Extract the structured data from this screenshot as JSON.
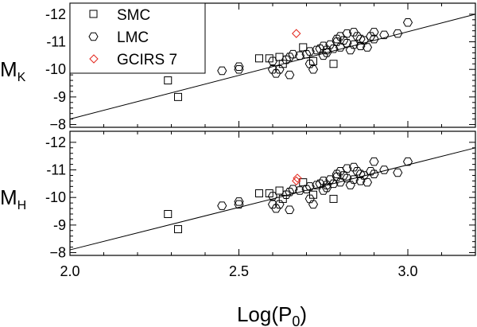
{
  "chart_data": [
    {
      "type": "scatter",
      "panel": "top",
      "ylabel_main": "M",
      "ylabel_sub": "K",
      "xlim": [
        2.0,
        3.2
      ],
      "ylim": [
        -7.9,
        -12.4
      ],
      "yticks": [
        -8,
        -9,
        -10,
        -11,
        -12
      ],
      "ytick_labels": [
        "−8",
        "-9",
        "-10",
        "-11",
        "-12"
      ],
      "fit_line": {
        "x": [
          2.0,
          3.2
        ],
        "y": [
          -8.2,
          -12.0
        ]
      },
      "legend": {
        "position": "top-left",
        "entries": [
          "SMC",
          "LMC",
          "GCIRS 7"
        ]
      },
      "series": [
        {
          "name": "SMC",
          "marker": "square",
          "color": "#000000",
          "points": [
            [
              2.29,
              -9.6
            ],
            [
              2.32,
              -9.0
            ],
            [
              2.56,
              -10.4
            ],
            [
              2.59,
              -10.4
            ],
            [
              2.62,
              -10.45
            ],
            [
              2.63,
              -10.2
            ],
            [
              2.69,
              -10.8
            ],
            [
              2.72,
              -10.3
            ],
            [
              2.78,
              -10.2
            ]
          ]
        },
        {
          "name": "LMC",
          "marker": "hexagon",
          "color": "#000000",
          "points": [
            [
              2.45,
              -9.95
            ],
            [
              2.5,
              -10.0
            ],
            [
              2.5,
              -10.1
            ],
            [
              2.6,
              -10.0
            ],
            [
              2.6,
              -10.3
            ],
            [
              2.61,
              -9.85
            ],
            [
              2.62,
              -10.0
            ],
            [
              2.64,
              -10.35
            ],
            [
              2.65,
              -9.8
            ],
            [
              2.65,
              -10.45
            ],
            [
              2.66,
              -10.55
            ],
            [
              2.68,
              -10.5
            ],
            [
              2.7,
              -10.55
            ],
            [
              2.71,
              -10.2
            ],
            [
              2.71,
              -10.65
            ],
            [
              2.72,
              -10.0
            ],
            [
              2.73,
              -10.7
            ],
            [
              2.74,
              -10.75
            ],
            [
              2.75,
              -10.5
            ],
            [
              2.75,
              -10.85
            ],
            [
              2.76,
              -10.7
            ],
            [
              2.77,
              -10.9
            ],
            [
              2.78,
              -10.75
            ],
            [
              2.79,
              -11.0
            ],
            [
              2.8,
              -10.8
            ],
            [
              2.8,
              -11.2
            ],
            [
              2.81,
              -11.05
            ],
            [
              2.82,
              -10.95
            ],
            [
              2.82,
              -11.3
            ],
            [
              2.83,
              -10.7
            ],
            [
              2.84,
              -10.9
            ],
            [
              2.84,
              -11.35
            ],
            [
              2.85,
              -11.2
            ],
            [
              2.86,
              -10.85
            ],
            [
              2.87,
              -11.05
            ],
            [
              2.88,
              -10.8
            ],
            [
              2.89,
              -11.2
            ],
            [
              2.9,
              -11.35
            ],
            [
              2.9,
              -11.1
            ],
            [
              2.93,
              -11.25
            ],
            [
              2.97,
              -11.3
            ],
            [
              3.0,
              -11.7
            ],
            [
              2.76,
              -10.6
            ],
            [
              2.79,
              -11.1
            ],
            [
              2.86,
              -11.1
            ]
          ]
        },
        {
          "name": "GCIRS 7",
          "marker": "diamond",
          "color": "#e3261c",
          "points": [
            [
              2.67,
              -11.3
            ]
          ]
        }
      ]
    },
    {
      "type": "scatter",
      "panel": "bottom",
      "ylabel_main": "M",
      "ylabel_sub": "H",
      "xlabel_main": "Log(P",
      "xlabel_sub": "0",
      "xlabel_end": ")",
      "xlim": [
        2.0,
        3.2
      ],
      "xticks": [
        2.0,
        2.5,
        3.0
      ],
      "xtick_labels": [
        "2.0",
        "2.5",
        "3.0"
      ],
      "ylim": [
        -7.9,
        -12.4
      ],
      "yticks": [
        -8,
        -9,
        -10,
        -11,
        -12
      ],
      "ytick_labels": [
        "−8",
        "-9",
        "-10",
        "-11",
        "-12"
      ],
      "fit_line": {
        "x": [
          2.0,
          3.2
        ],
        "y": [
          -8.1,
          -11.8
        ]
      },
      "series": [
        {
          "name": "SMC",
          "marker": "square",
          "color": "#000000",
          "points": [
            [
              2.29,
              -9.4
            ],
            [
              2.32,
              -8.85
            ],
            [
              2.56,
              -10.15
            ],
            [
              2.59,
              -10.15
            ],
            [
              2.62,
              -10.25
            ],
            [
              2.63,
              -9.95
            ],
            [
              2.69,
              -10.55
            ],
            [
              2.72,
              -10.1
            ],
            [
              2.78,
              -9.95
            ]
          ]
        },
        {
          "name": "LMC",
          "marker": "hexagon",
          "color": "#000000",
          "points": [
            [
              2.45,
              -9.7
            ],
            [
              2.5,
              -9.75
            ],
            [
              2.5,
              -9.85
            ],
            [
              2.6,
              -9.75
            ],
            [
              2.6,
              -10.05
            ],
            [
              2.61,
              -9.6
            ],
            [
              2.62,
              -9.75
            ],
            [
              2.64,
              -10.1
            ],
            [
              2.65,
              -9.55
            ],
            [
              2.65,
              -10.2
            ],
            [
              2.66,
              -10.3
            ],
            [
              2.68,
              -10.25
            ],
            [
              2.7,
              -10.3
            ],
            [
              2.71,
              -9.95
            ],
            [
              2.71,
              -10.4
            ],
            [
              2.72,
              -9.75
            ],
            [
              2.73,
              -10.45
            ],
            [
              2.74,
              -10.5
            ],
            [
              2.75,
              -10.25
            ],
            [
              2.75,
              -10.6
            ],
            [
              2.76,
              -10.45
            ],
            [
              2.77,
              -10.65
            ],
            [
              2.78,
              -10.5
            ],
            [
              2.79,
              -10.75
            ],
            [
              2.8,
              -10.55
            ],
            [
              2.8,
              -10.95
            ],
            [
              2.81,
              -10.8
            ],
            [
              2.82,
              -10.7
            ],
            [
              2.82,
              -11.05
            ],
            [
              2.83,
              -10.45
            ],
            [
              2.84,
              -10.65
            ],
            [
              2.84,
              -11.1
            ],
            [
              2.85,
              -10.95
            ],
            [
              2.86,
              -10.6
            ],
            [
              2.87,
              -10.8
            ],
            [
              2.88,
              -10.55
            ],
            [
              2.89,
              -10.95
            ],
            [
              2.9,
              -11.3
            ],
            [
              2.9,
              -10.85
            ],
            [
              2.93,
              -11.0
            ],
            [
              2.97,
              -10.9
            ],
            [
              3.0,
              -11.3
            ],
            [
              2.76,
              -10.35
            ],
            [
              2.79,
              -10.85
            ],
            [
              2.86,
              -10.85
            ]
          ]
        },
        {
          "name": "GCIRS 7",
          "marker": "diamond",
          "color": "#e3261c",
          "points": [
            [
              2.67,
              -10.6
            ],
            [
              2.673,
              -10.7
            ]
          ]
        }
      ]
    }
  ]
}
